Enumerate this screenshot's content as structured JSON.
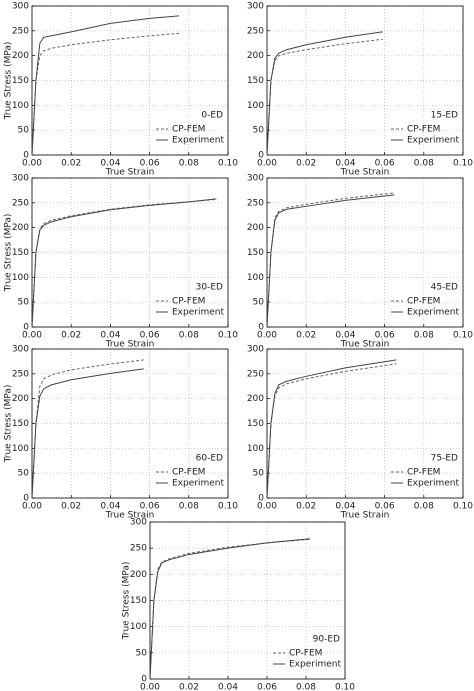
{
  "chart_data": [
    {
      "type": "line",
      "annotation": "0-ED",
      "x_label": "True Strain",
      "y_label": "True Stress (MPa)",
      "x": [
        0,
        0.002,
        0.004,
        0.006,
        0.01,
        0.02,
        0.04,
        0.06,
        0.075
      ],
      "series": [
        {
          "name": "CP-FEM",
          "color": "#666666",
          "linestyle": "dashed",
          "values": [
            0,
            150,
            200,
            210,
            215,
            222,
            232,
            240,
            245
          ]
        },
        {
          "name": "Experiment",
          "color": "#444444",
          "linestyle": "solid",
          "values": [
            0,
            150,
            225,
            237,
            240,
            248,
            265,
            275,
            280
          ]
        }
      ],
      "xlim": [
        0,
        0.1
      ],
      "ylim": [
        0,
        300
      ],
      "xticks": [
        {
          "value": 0,
          "label": "0.00"
        },
        {
          "value": 0.02,
          "label": "0.02"
        },
        {
          "value": 0.04,
          "label": "0.04"
        },
        {
          "value": 0.06,
          "label": "0.06"
        },
        {
          "value": 0.08,
          "label": "0.08"
        },
        {
          "value": 0.1,
          "label": "0.10"
        }
      ],
      "yticks": [
        0,
        50,
        100,
        150,
        200,
        250,
        300
      ],
      "grid": true
    },
    {
      "type": "line",
      "annotation": "15-ED",
      "x_label": "True Strain",
      "x": [
        0,
        0.002,
        0.004,
        0.006,
        0.01,
        0.02,
        0.04,
        0.059
      ],
      "series": [
        {
          "name": "CP-FEM",
          "color": "#666666",
          "linestyle": "dashed",
          "values": [
            0,
            150,
            190,
            200,
            205,
            212,
            224,
            233
          ]
        },
        {
          "name": "Experiment",
          "color": "#444444",
          "linestyle": "solid",
          "values": [
            0,
            150,
            195,
            205,
            212,
            222,
            237,
            248
          ]
        }
      ],
      "xlim": [
        0,
        0.1
      ],
      "ylim": [
        0,
        300
      ],
      "xticks": [
        {
          "value": 0,
          "label": "0.00"
        },
        {
          "value": 0.02,
          "label": "0.02"
        },
        {
          "value": 0.04,
          "label": "0.04"
        },
        {
          "value": 0.06,
          "label": "0.06"
        },
        {
          "value": 0.08,
          "label": "0.08"
        },
        {
          "value": 0.1,
          "label": "0.10"
        }
      ],
      "yticks": [
        0,
        50,
        100,
        150,
        200,
        250,
        300
      ],
      "grid": true
    },
    {
      "type": "line",
      "annotation": "30-ED",
      "x_label": "True Strain",
      "y_label": "True Stress (MPa)",
      "x": [
        0,
        0.002,
        0.004,
        0.006,
        0.01,
        0.02,
        0.04,
        0.06,
        0.08,
        0.094
      ],
      "series": [
        {
          "name": "CP-FEM",
          "color": "#666666",
          "linestyle": "dashed",
          "values": [
            0,
            150,
            198,
            208,
            215,
            224,
            237,
            246,
            252,
            257
          ]
        },
        {
          "name": "Experiment",
          "color": "#444444",
          "linestyle": "solid",
          "values": [
            0,
            150,
            195,
            205,
            212,
            222,
            236,
            245,
            252,
            258
          ]
        }
      ],
      "xlim": [
        0,
        0.1
      ],
      "ylim": [
        0,
        300
      ],
      "xticks": [
        {
          "value": 0,
          "label": "0.00"
        },
        {
          "value": 0.02,
          "label": "0.02"
        },
        {
          "value": 0.04,
          "label": "0.04"
        },
        {
          "value": 0.06,
          "label": "0.06"
        },
        {
          "value": 0.08,
          "label": "0.08"
        },
        {
          "value": 0.1,
          "label": "0.10"
        }
      ],
      "yticks": [
        0,
        50,
        100,
        150,
        200,
        250,
        300
      ],
      "grid": true
    },
    {
      "type": "line",
      "annotation": "45-ED",
      "x_label": "True Strain",
      "x": [
        0,
        0.002,
        0.004,
        0.006,
        0.01,
        0.02,
        0.04,
        0.065
      ],
      "series": [
        {
          "name": "CP-FEM",
          "color": "#666666",
          "linestyle": "dashed",
          "values": [
            0,
            150,
            220,
            233,
            240,
            247,
            259,
            270
          ]
        },
        {
          "name": "Experiment",
          "color": "#444444",
          "linestyle": "solid",
          "values": [
            0,
            150,
            215,
            230,
            237,
            243,
            255,
            266
          ]
        }
      ],
      "xlim": [
        0,
        0.1
      ],
      "ylim": [
        0,
        300
      ],
      "xticks": [
        {
          "value": 0,
          "label": "0.00"
        },
        {
          "value": 0.02,
          "label": "0.02"
        },
        {
          "value": 0.04,
          "label": "0.04"
        },
        {
          "value": 0.06,
          "label": "0.06"
        },
        {
          "value": 0.08,
          "label": "0.08"
        },
        {
          "value": 0.1,
          "label": "0.10"
        }
      ],
      "yticks": [
        0,
        50,
        100,
        150,
        200,
        250,
        300
      ],
      "grid": true
    },
    {
      "type": "line",
      "annotation": "60-ED",
      "x_label": "True Strain",
      "y_label": "True Stress (MPa)",
      "x": [
        0,
        0.002,
        0.004,
        0.006,
        0.01,
        0.02,
        0.04,
        0.057
      ],
      "series": [
        {
          "name": "CP-FEM",
          "color": "#666666",
          "linestyle": "dashed",
          "values": [
            0,
            150,
            225,
            240,
            248,
            258,
            270,
            278
          ]
        },
        {
          "name": "Experiment",
          "color": "#444444",
          "linestyle": "solid",
          "values": [
            0,
            150,
            205,
            220,
            228,
            238,
            251,
            260
          ]
        }
      ],
      "xlim": [
        0,
        0.1
      ],
      "ylim": [
        0,
        300
      ],
      "xticks": [
        {
          "value": 0,
          "label": "0.00"
        },
        {
          "value": 0.02,
          "label": "0.02"
        },
        {
          "value": 0.04,
          "label": "0.04"
        },
        {
          "value": 0.06,
          "label": "0.06"
        },
        {
          "value": 0.08,
          "label": "0.08"
        },
        {
          "value": 0.1,
          "label": "0.10"
        }
      ],
      "yticks": [
        0,
        50,
        100,
        150,
        200,
        250,
        300
      ],
      "grid": true
    },
    {
      "type": "line",
      "annotation": "75-ED",
      "x_label": "True Strain",
      "x": [
        0,
        0.002,
        0.004,
        0.006,
        0.01,
        0.02,
        0.04,
        0.066
      ],
      "series": [
        {
          "name": "CP-FEM",
          "color": "#666666",
          "linestyle": "dashed",
          "values": [
            0,
            150,
            205,
            222,
            230,
            240,
            255,
            270
          ]
        },
        {
          "name": "Experiment",
          "color": "#444444",
          "linestyle": "solid",
          "values": [
            0,
            150,
            210,
            228,
            235,
            245,
            262,
            278
          ]
        }
      ],
      "xlim": [
        0,
        0.1
      ],
      "ylim": [
        0,
        300
      ],
      "xticks": [
        {
          "value": 0,
          "label": "0.00"
        },
        {
          "value": 0.02,
          "label": "0.02"
        },
        {
          "value": 0.04,
          "label": "0.04"
        },
        {
          "value": 0.06,
          "label": "0.06"
        },
        {
          "value": 0.08,
          "label": "0.08"
        },
        {
          "value": 0.1,
          "label": "0.10"
        }
      ],
      "yticks": [
        0,
        50,
        100,
        150,
        200,
        250,
        300
      ],
      "grid": true
    },
    {
      "type": "line",
      "annotation": "90-ED",
      "x_label": "True Strain",
      "y_label": "True Stress (MPa)",
      "x": [
        0,
        0.002,
        0.004,
        0.006,
        0.01,
        0.02,
        0.04,
        0.06,
        0.082
      ],
      "series": [
        {
          "name": "CP-FEM",
          "color": "#666666",
          "linestyle": "dashed",
          "values": [
            0,
            150,
            210,
            223,
            230,
            240,
            252,
            260,
            267
          ]
        },
        {
          "name": "Experiment",
          "color": "#444444",
          "linestyle": "solid",
          "values": [
            0,
            150,
            205,
            222,
            228,
            238,
            250,
            260,
            268
          ]
        }
      ],
      "xlim": [
        0,
        0.1
      ],
      "ylim": [
        0,
        300
      ],
      "xticks": [
        {
          "value": 0,
          "label": "0.00"
        },
        {
          "value": 0.02,
          "label": "0.02"
        },
        {
          "value": 0.04,
          "label": "0.04"
        },
        {
          "value": 0.06,
          "label": "0.06"
        },
        {
          "value": 0.08,
          "label": "0.08"
        },
        {
          "value": 0.1,
          "label": "0.10"
        }
      ],
      "yticks": [
        0,
        50,
        100,
        150,
        200,
        250,
        300
      ],
      "grid": true
    }
  ]
}
